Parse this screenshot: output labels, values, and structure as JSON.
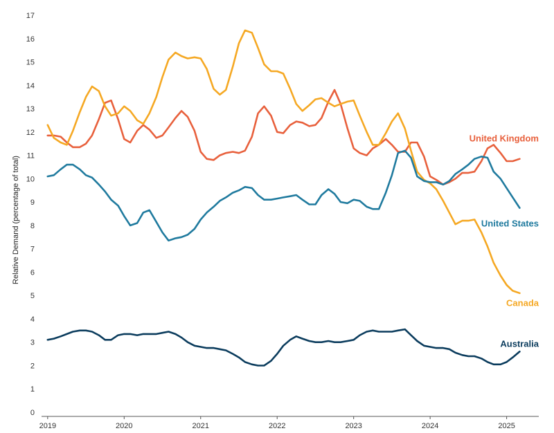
{
  "chart_data": {
    "type": "line",
    "title": "",
    "ylabel": "Relative Demand (percentage of total)",
    "xlabel": "",
    "xlim": [
      2018.92,
      2025.42
    ],
    "ylim": [
      0,
      17
    ],
    "yticks": [
      0,
      1,
      2,
      3,
      4,
      5,
      6,
      7,
      8,
      9,
      10,
      11,
      12,
      13,
      14,
      15,
      16,
      17
    ],
    "xticks": [
      "2019",
      "2020",
      "2021",
      "2022",
      "2023",
      "2024",
      "2025"
    ],
    "grid": false,
    "legend": "inline labels at line ends",
    "series": [
      {
        "name": "United Kingdom",
        "color": "#e8603c",
        "points": [
          [
            2019.0,
            11.85
          ],
          [
            2019.08,
            11.85
          ],
          [
            2019.17,
            11.8
          ],
          [
            2019.25,
            11.55
          ],
          [
            2019.33,
            11.35
          ],
          [
            2019.42,
            11.35
          ],
          [
            2019.5,
            11.5
          ],
          [
            2019.58,
            11.85
          ],
          [
            2019.67,
            12.55
          ],
          [
            2019.75,
            13.25
          ],
          [
            2019.83,
            13.35
          ],
          [
            2019.92,
            12.55
          ],
          [
            2020.0,
            11.7
          ],
          [
            2020.08,
            11.55
          ],
          [
            2020.17,
            12.05
          ],
          [
            2020.25,
            12.3
          ],
          [
            2020.33,
            12.1
          ],
          [
            2020.42,
            11.75
          ],
          [
            2020.5,
            11.85
          ],
          [
            2020.58,
            12.2
          ],
          [
            2020.67,
            12.6
          ],
          [
            2020.75,
            12.9
          ],
          [
            2020.83,
            12.65
          ],
          [
            2020.92,
            12.05
          ],
          [
            2021.0,
            11.15
          ],
          [
            2021.08,
            10.85
          ],
          [
            2021.17,
            10.8
          ],
          [
            2021.25,
            11.0
          ],
          [
            2021.33,
            11.1
          ],
          [
            2021.42,
            11.15
          ],
          [
            2021.5,
            11.1
          ],
          [
            2021.58,
            11.2
          ],
          [
            2021.67,
            11.8
          ],
          [
            2021.75,
            12.8
          ],
          [
            2021.83,
            13.1
          ],
          [
            2021.92,
            12.7
          ],
          [
            2022.0,
            12.0
          ],
          [
            2022.08,
            11.95
          ],
          [
            2022.17,
            12.3
          ],
          [
            2022.25,
            12.45
          ],
          [
            2022.33,
            12.4
          ],
          [
            2022.42,
            12.25
          ],
          [
            2022.5,
            12.3
          ],
          [
            2022.58,
            12.6
          ],
          [
            2022.67,
            13.3
          ],
          [
            2022.75,
            13.8
          ],
          [
            2022.83,
            13.2
          ],
          [
            2022.92,
            12.15
          ],
          [
            2023.0,
            11.3
          ],
          [
            2023.08,
            11.1
          ],
          [
            2023.17,
            11.0
          ],
          [
            2023.25,
            11.3
          ],
          [
            2023.33,
            11.45
          ],
          [
            2023.42,
            11.7
          ],
          [
            2023.5,
            11.45
          ],
          [
            2023.58,
            11.15
          ],
          [
            2023.67,
            11.15
          ],
          [
            2023.75,
            11.55
          ],
          [
            2023.83,
            11.55
          ],
          [
            2023.92,
            10.95
          ],
          [
            2024.0,
            10.1
          ],
          [
            2024.08,
            9.95
          ],
          [
            2024.17,
            9.75
          ],
          [
            2024.25,
            9.85
          ],
          [
            2024.33,
            10.0
          ],
          [
            2024.42,
            10.25
          ],
          [
            2024.5,
            10.25
          ],
          [
            2024.58,
            10.3
          ],
          [
            2024.67,
            10.75
          ],
          [
            2024.75,
            11.3
          ],
          [
            2024.83,
            11.45
          ],
          [
            2024.92,
            11.1
          ],
          [
            2025.0,
            10.75
          ],
          [
            2025.08,
            10.75
          ],
          [
            2025.17,
            10.85
          ]
        ]
      },
      {
        "name": "Canada",
        "color": "#f5a823",
        "points": [
          [
            2019.0,
            12.3
          ],
          [
            2019.08,
            11.75
          ],
          [
            2019.17,
            11.55
          ],
          [
            2019.25,
            11.45
          ],
          [
            2019.33,
            12.05
          ],
          [
            2019.42,
            12.85
          ],
          [
            2019.5,
            13.5
          ],
          [
            2019.58,
            13.95
          ],
          [
            2019.67,
            13.75
          ],
          [
            2019.75,
            13.1
          ],
          [
            2019.83,
            12.7
          ],
          [
            2019.92,
            12.8
          ],
          [
            2020.0,
            13.1
          ],
          [
            2020.08,
            12.9
          ],
          [
            2020.17,
            12.5
          ],
          [
            2020.25,
            12.35
          ],
          [
            2020.33,
            12.8
          ],
          [
            2020.42,
            13.5
          ],
          [
            2020.5,
            14.35
          ],
          [
            2020.58,
            15.1
          ],
          [
            2020.67,
            15.4
          ],
          [
            2020.75,
            15.25
          ],
          [
            2020.83,
            15.15
          ],
          [
            2020.92,
            15.2
          ],
          [
            2021.0,
            15.15
          ],
          [
            2021.08,
            14.7
          ],
          [
            2021.17,
            13.85
          ],
          [
            2021.25,
            13.6
          ],
          [
            2021.33,
            13.8
          ],
          [
            2021.42,
            14.8
          ],
          [
            2021.5,
            15.8
          ],
          [
            2021.58,
            16.35
          ],
          [
            2021.67,
            16.25
          ],
          [
            2021.75,
            15.6
          ],
          [
            2021.83,
            14.9
          ],
          [
            2021.92,
            14.6
          ],
          [
            2022.0,
            14.6
          ],
          [
            2022.08,
            14.5
          ],
          [
            2022.17,
            13.85
          ],
          [
            2022.25,
            13.2
          ],
          [
            2022.33,
            12.9
          ],
          [
            2022.42,
            13.15
          ],
          [
            2022.5,
            13.4
          ],
          [
            2022.58,
            13.45
          ],
          [
            2022.67,
            13.25
          ],
          [
            2022.75,
            13.1
          ],
          [
            2022.83,
            13.2
          ],
          [
            2022.92,
            13.3
          ],
          [
            2023.0,
            13.35
          ],
          [
            2023.08,
            12.7
          ],
          [
            2023.17,
            12.0
          ],
          [
            2023.25,
            11.45
          ],
          [
            2023.33,
            11.45
          ],
          [
            2023.42,
            11.95
          ],
          [
            2023.5,
            12.45
          ],
          [
            2023.58,
            12.8
          ],
          [
            2023.67,
            12.15
          ],
          [
            2023.75,
            11.2
          ],
          [
            2023.83,
            10.3
          ],
          [
            2023.92,
            9.95
          ],
          [
            2024.0,
            9.8
          ],
          [
            2024.08,
            9.55
          ],
          [
            2024.17,
            9.05
          ],
          [
            2024.25,
            8.55
          ],
          [
            2024.33,
            8.05
          ],
          [
            2024.42,
            8.2
          ],
          [
            2024.5,
            8.2
          ],
          [
            2024.58,
            8.25
          ],
          [
            2024.67,
            7.7
          ],
          [
            2024.75,
            7.1
          ],
          [
            2024.83,
            6.4
          ],
          [
            2024.92,
            5.85
          ],
          [
            2025.0,
            5.45
          ],
          [
            2025.08,
            5.2
          ],
          [
            2025.17,
            5.1
          ]
        ]
      },
      {
        "name": "United States",
        "color": "#1f7a9e",
        "points": [
          [
            2019.0,
            10.1
          ],
          [
            2019.08,
            10.15
          ],
          [
            2019.17,
            10.4
          ],
          [
            2019.25,
            10.6
          ],
          [
            2019.33,
            10.6
          ],
          [
            2019.42,
            10.4
          ],
          [
            2019.5,
            10.15
          ],
          [
            2019.58,
            10.05
          ],
          [
            2019.67,
            9.75
          ],
          [
            2019.75,
            9.45
          ],
          [
            2019.83,
            9.1
          ],
          [
            2019.92,
            8.85
          ],
          [
            2020.0,
            8.4
          ],
          [
            2020.08,
            8.0
          ],
          [
            2020.17,
            8.1
          ],
          [
            2020.25,
            8.55
          ],
          [
            2020.33,
            8.65
          ],
          [
            2020.42,
            8.15
          ],
          [
            2020.5,
            7.7
          ],
          [
            2020.58,
            7.35
          ],
          [
            2020.67,
            7.45
          ],
          [
            2020.75,
            7.5
          ],
          [
            2020.83,
            7.6
          ],
          [
            2020.92,
            7.85
          ],
          [
            2021.0,
            8.25
          ],
          [
            2021.08,
            8.55
          ],
          [
            2021.17,
            8.8
          ],
          [
            2021.25,
            9.05
          ],
          [
            2021.33,
            9.2
          ],
          [
            2021.42,
            9.4
          ],
          [
            2021.5,
            9.5
          ],
          [
            2021.58,
            9.65
          ],
          [
            2021.67,
            9.6
          ],
          [
            2021.75,
            9.3
          ],
          [
            2021.83,
            9.1
          ],
          [
            2021.92,
            9.1
          ],
          [
            2022.0,
            9.15
          ],
          [
            2022.08,
            9.2
          ],
          [
            2022.17,
            9.25
          ],
          [
            2022.25,
            9.3
          ],
          [
            2022.33,
            9.1
          ],
          [
            2022.42,
            8.9
          ],
          [
            2022.5,
            8.9
          ],
          [
            2022.58,
            9.3
          ],
          [
            2022.67,
            9.55
          ],
          [
            2022.75,
            9.35
          ],
          [
            2022.83,
            9.0
          ],
          [
            2022.92,
            8.95
          ],
          [
            2023.0,
            9.1
          ],
          [
            2023.08,
            9.05
          ],
          [
            2023.17,
            8.8
          ],
          [
            2023.25,
            8.7
          ],
          [
            2023.33,
            8.7
          ],
          [
            2023.42,
            9.4
          ],
          [
            2023.5,
            10.15
          ],
          [
            2023.58,
            11.1
          ],
          [
            2023.67,
            11.2
          ],
          [
            2023.75,
            10.9
          ],
          [
            2023.83,
            10.1
          ],
          [
            2023.92,
            9.9
          ],
          [
            2024.0,
            9.85
          ],
          [
            2024.08,
            9.85
          ],
          [
            2024.17,
            9.75
          ],
          [
            2024.25,
            9.9
          ],
          [
            2024.33,
            10.2
          ],
          [
            2024.42,
            10.4
          ],
          [
            2024.5,
            10.6
          ],
          [
            2024.58,
            10.85
          ],
          [
            2024.67,
            10.95
          ],
          [
            2024.75,
            10.9
          ],
          [
            2024.83,
            10.3
          ],
          [
            2024.92,
            10.0
          ],
          [
            2025.0,
            9.6
          ],
          [
            2025.08,
            9.2
          ],
          [
            2025.17,
            8.75
          ]
        ]
      },
      {
        "name": "Australia",
        "color": "#0b3c5d",
        "points": [
          [
            2019.0,
            3.1
          ],
          [
            2019.08,
            3.15
          ],
          [
            2019.17,
            3.25
          ],
          [
            2019.25,
            3.35
          ],
          [
            2019.33,
            3.45
          ],
          [
            2019.42,
            3.5
          ],
          [
            2019.5,
            3.5
          ],
          [
            2019.58,
            3.45
          ],
          [
            2019.67,
            3.3
          ],
          [
            2019.75,
            3.1
          ],
          [
            2019.83,
            3.1
          ],
          [
            2019.92,
            3.3
          ],
          [
            2020.0,
            3.35
          ],
          [
            2020.08,
            3.35
          ],
          [
            2020.17,
            3.3
          ],
          [
            2020.25,
            3.35
          ],
          [
            2020.33,
            3.35
          ],
          [
            2020.42,
            3.35
          ],
          [
            2020.5,
            3.4
          ],
          [
            2020.58,
            3.45
          ],
          [
            2020.67,
            3.35
          ],
          [
            2020.75,
            3.2
          ],
          [
            2020.83,
            3.0
          ],
          [
            2020.92,
            2.85
          ],
          [
            2021.0,
            2.8
          ],
          [
            2021.08,
            2.75
          ],
          [
            2021.17,
            2.75
          ],
          [
            2021.25,
            2.7
          ],
          [
            2021.33,
            2.65
          ],
          [
            2021.42,
            2.5
          ],
          [
            2021.5,
            2.35
          ],
          [
            2021.58,
            2.15
          ],
          [
            2021.67,
            2.05
          ],
          [
            2021.75,
            2.0
          ],
          [
            2021.83,
            2.0
          ],
          [
            2021.92,
            2.2
          ],
          [
            2022.0,
            2.5
          ],
          [
            2022.08,
            2.85
          ],
          [
            2022.17,
            3.1
          ],
          [
            2022.25,
            3.25
          ],
          [
            2022.33,
            3.15
          ],
          [
            2022.42,
            3.05
          ],
          [
            2022.5,
            3.0
          ],
          [
            2022.58,
            3.0
          ],
          [
            2022.67,
            3.05
          ],
          [
            2022.75,
            3.0
          ],
          [
            2022.83,
            3.0
          ],
          [
            2022.92,
            3.05
          ],
          [
            2023.0,
            3.1
          ],
          [
            2023.08,
            3.3
          ],
          [
            2023.17,
            3.45
          ],
          [
            2023.25,
            3.5
          ],
          [
            2023.33,
            3.45
          ],
          [
            2023.42,
            3.45
          ],
          [
            2023.5,
            3.45
          ],
          [
            2023.58,
            3.5
          ],
          [
            2023.67,
            3.55
          ],
          [
            2023.75,
            3.3
          ],
          [
            2023.83,
            3.05
          ],
          [
            2023.92,
            2.85
          ],
          [
            2024.0,
            2.8
          ],
          [
            2024.08,
            2.75
          ],
          [
            2024.17,
            2.75
          ],
          [
            2024.25,
            2.7
          ],
          [
            2024.33,
            2.55
          ],
          [
            2024.42,
            2.45
          ],
          [
            2024.5,
            2.4
          ],
          [
            2024.58,
            2.4
          ],
          [
            2024.67,
            2.3
          ],
          [
            2024.75,
            2.15
          ],
          [
            2024.83,
            2.05
          ],
          [
            2024.92,
            2.05
          ],
          [
            2025.0,
            2.15
          ],
          [
            2025.08,
            2.35
          ],
          [
            2025.17,
            2.6
          ]
        ]
      }
    ]
  }
}
